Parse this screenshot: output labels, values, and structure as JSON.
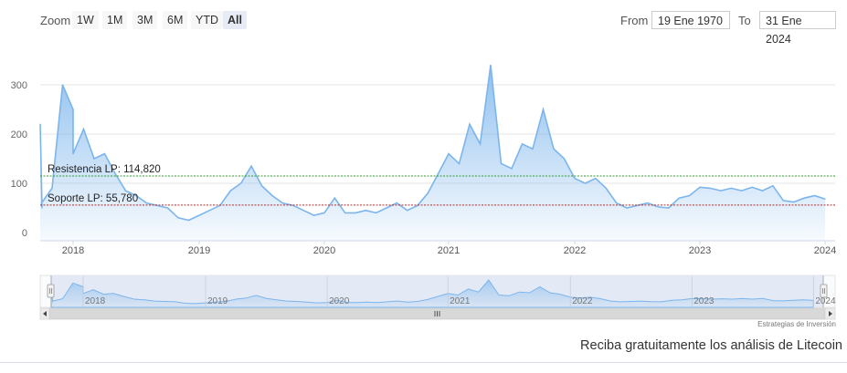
{
  "toolbar": {
    "zoom_label": "Zoom",
    "buttons": [
      {
        "label": "1W",
        "active": false
      },
      {
        "label": "1M",
        "active": false
      },
      {
        "label": "3M",
        "active": false
      },
      {
        "label": "6M",
        "active": false
      },
      {
        "label": "YTD",
        "active": false
      },
      {
        "label": "All",
        "active": true
      }
    ],
    "from_label": "From",
    "from_value": "19 Ene 1970",
    "to_label": "To",
    "to_value": "31 Ene 2024"
  },
  "chart_data": {
    "type": "area",
    "y_ticks": [
      "0",
      "100",
      "200",
      "300"
    ],
    "ylim": [
      0,
      340
    ],
    "x_ticks": [
      "2018",
      "2019",
      "2020",
      "2021",
      "2022",
      "2023",
      "2024"
    ],
    "series": [
      {
        "x": [
          "2017-09",
          "2017-09",
          "2017-10",
          "2017-11",
          "2017-12",
          "2018-01",
          "2018-01",
          "2018-02",
          "2018-03",
          "2018-04",
          "2018-05",
          "2018-06",
          "2018-07",
          "2018-08",
          "2018-09",
          "2018-10",
          "2018-11",
          "2018-12",
          "2019-01",
          "2019-02",
          "2019-03",
          "2019-04",
          "2019-05",
          "2019-06",
          "2019-07",
          "2019-08",
          "2019-09",
          "2019-10",
          "2019-11",
          "2019-12",
          "2020-01",
          "2020-02",
          "2020-03",
          "2020-04",
          "2020-05",
          "2020-06",
          "2020-07",
          "2020-08",
          "2020-09",
          "2020-10",
          "2020-11",
          "2020-12",
          "2021-01",
          "2021-02",
          "2021-03",
          "2021-04",
          "2021-05",
          "2021-06",
          "2021-07",
          "2021-08",
          "2021-09",
          "2021-10",
          "2021-11",
          "2021-12",
          "2022-01",
          "2022-02",
          "2022-03",
          "2022-04",
          "2022-05",
          "2022-06",
          "2022-07",
          "2022-08",
          "2022-09",
          "2022-10",
          "2022-11",
          "2022-12",
          "2023-01",
          "2023-02",
          "2023-03",
          "2023-04",
          "2023-05",
          "2023-06",
          "2023-07",
          "2023-08",
          "2023-09",
          "2023-10",
          "2023-11",
          "2023-12",
          "2024-01"
        ],
        "values": [
          220,
          50,
          60,
          90,
          300,
          250,
          160,
          210,
          150,
          160,
          120,
          85,
          75,
          60,
          55,
          50,
          30,
          25,
          35,
          45,
          55,
          85,
          100,
          135,
          95,
          75,
          60,
          55,
          45,
          35,
          40,
          70,
          40,
          40,
          45,
          40,
          50,
          60,
          45,
          55,
          80,
          120,
          160,
          140,
          220,
          180,
          340,
          140,
          130,
          180,
          170,
          250,
          170,
          150,
          110,
          100,
          110,
          90,
          60,
          50,
          55,
          60,
          52,
          50,
          70,
          75,
          92,
          90,
          85,
          90,
          85,
          92,
          85,
          95,
          65,
          62,
          70,
          75,
          68
        ]
      }
    ],
    "annotations": [
      {
        "label": "Resistencia LP: 114,820",
        "value": 114.82,
        "color": "#2f9a2f"
      },
      {
        "label": "Soporte LP: 55,780",
        "value": 55.78,
        "color": "#b52b2b"
      }
    ],
    "navigator": {
      "x_ticks": [
        "2018",
        "2019",
        "2020",
        "2021",
        "2022",
        "2023",
        "2024"
      ]
    },
    "grid": true,
    "line_color": "#7cb5ec"
  },
  "credit": "Estrategias de Inversión",
  "footer_text": "Reciba gratuitamente los análisis de Litecoin"
}
